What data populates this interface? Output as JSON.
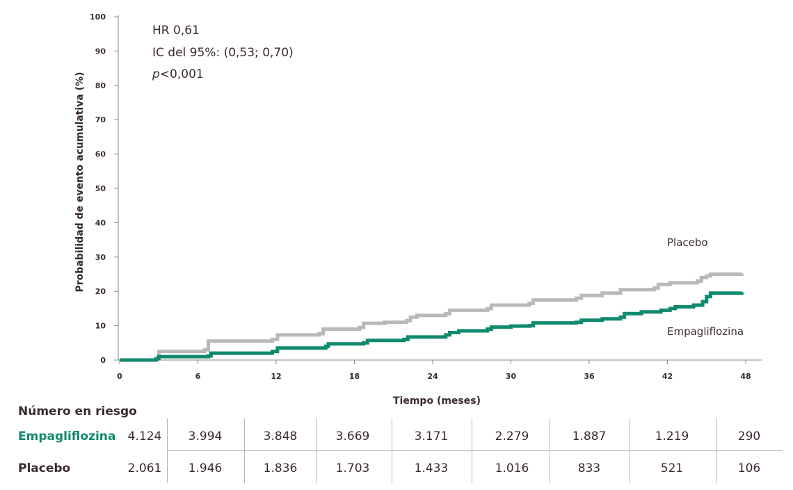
{
  "chart_data": {
    "type": "line",
    "title": "",
    "xlabel": "Tiempo (meses)",
    "ylabel": "Probabilidad de evento acumulativa (%)",
    "xlim": [
      0,
      48
    ],
    "ylim": [
      0,
      100
    ],
    "x_ticks": [
      "0",
      "6",
      "12",
      "18",
      "24",
      "30",
      "36",
      "42",
      "48"
    ],
    "y_ticks": [
      "0",
      "10",
      "20",
      "30",
      "40",
      "50",
      "60",
      "70",
      "80",
      "90",
      "100"
    ],
    "grid": false,
    "annotation": {
      "hr": "HR 0,61",
      "ci": "IC del 95%: (0,53; 0,70)",
      "p_italic": "p",
      "p_rest": "<0,001"
    },
    "series": [
      {
        "name": "Placebo",
        "color": "#b9b9b9",
        "points": [
          [
            0,
            0
          ],
          [
            2.8,
            0.3
          ],
          [
            3.0,
            2.5
          ],
          [
            6.5,
            3.0
          ],
          [
            6.8,
            5.5
          ],
          [
            11.7,
            6.0
          ],
          [
            12.1,
            7.3
          ],
          [
            15.3,
            7.7
          ],
          [
            15.6,
            9.0
          ],
          [
            18.4,
            9.5
          ],
          [
            18.7,
            10.7
          ],
          [
            20.3,
            11.0
          ],
          [
            22.0,
            11.5
          ],
          [
            22.3,
            12.5
          ],
          [
            22.8,
            13.0
          ],
          [
            25.0,
            13.5
          ],
          [
            25.3,
            14.5
          ],
          [
            28.2,
            15.0
          ],
          [
            28.5,
            16.0
          ],
          [
            31.4,
            16.5
          ],
          [
            31.7,
            17.5
          ],
          [
            35.0,
            18.0
          ],
          [
            35.4,
            18.8
          ],
          [
            37.0,
            19.5
          ],
          [
            38.4,
            20.5
          ],
          [
            41.0,
            21.0
          ],
          [
            41.3,
            22.0
          ],
          [
            42.2,
            22.5
          ],
          [
            44.3,
            23.0
          ],
          [
            44.6,
            24.0
          ],
          [
            45.0,
            24.5
          ],
          [
            45.3,
            25.0
          ],
          [
            47.7,
            25.2
          ]
        ]
      },
      {
        "name": "Empagliflozina",
        "color": "#0f8a6e",
        "points": [
          [
            0,
            0
          ],
          [
            2.8,
            0.4
          ],
          [
            3.0,
            1.0
          ],
          [
            6.8,
            1.2
          ],
          [
            7.0,
            2.0
          ],
          [
            11.7,
            2.5
          ],
          [
            12.1,
            3.5
          ],
          [
            15.8,
            4.0
          ],
          [
            16.0,
            4.7
          ],
          [
            18.7,
            5.0
          ],
          [
            19.0,
            5.7
          ],
          [
            21.8,
            6.0
          ],
          [
            22.1,
            6.7
          ],
          [
            25.0,
            7.3
          ],
          [
            25.3,
            8.0
          ],
          [
            26.0,
            8.5
          ],
          [
            28.2,
            9.0
          ],
          [
            28.5,
            9.6
          ],
          [
            30.0,
            9.9
          ],
          [
            31.4,
            10.0
          ],
          [
            31.7,
            10.8
          ],
          [
            35.0,
            11.0
          ],
          [
            35.4,
            11.6
          ],
          [
            37.0,
            12.0
          ],
          [
            38.4,
            12.5
          ],
          [
            38.7,
            13.5
          ],
          [
            40.0,
            14.0
          ],
          [
            41.5,
            14.5
          ],
          [
            42.2,
            15.0
          ],
          [
            42.6,
            15.5
          ],
          [
            44.0,
            16.0
          ],
          [
            44.7,
            17.0
          ],
          [
            45.0,
            18.5
          ],
          [
            45.3,
            19.5
          ],
          [
            47.7,
            19.8
          ]
        ]
      }
    ]
  },
  "risk_table": {
    "title": "Número en riesgo",
    "rows": [
      {
        "name": "Empagliflozina",
        "color": "#0f8a6e",
        "values": [
          "4.124",
          "3.994",
          "3.848",
          "3.669",
          "3.171",
          "2.279",
          "1.887",
          "1.219",
          "290"
        ]
      },
      {
        "name": "Placebo",
        "color": "#3a2a2f",
        "values": [
          "2.061",
          "1.946",
          "1.836",
          "1.703",
          "1.433",
          "1.016",
          "833",
          "521",
          "106"
        ]
      }
    ]
  }
}
